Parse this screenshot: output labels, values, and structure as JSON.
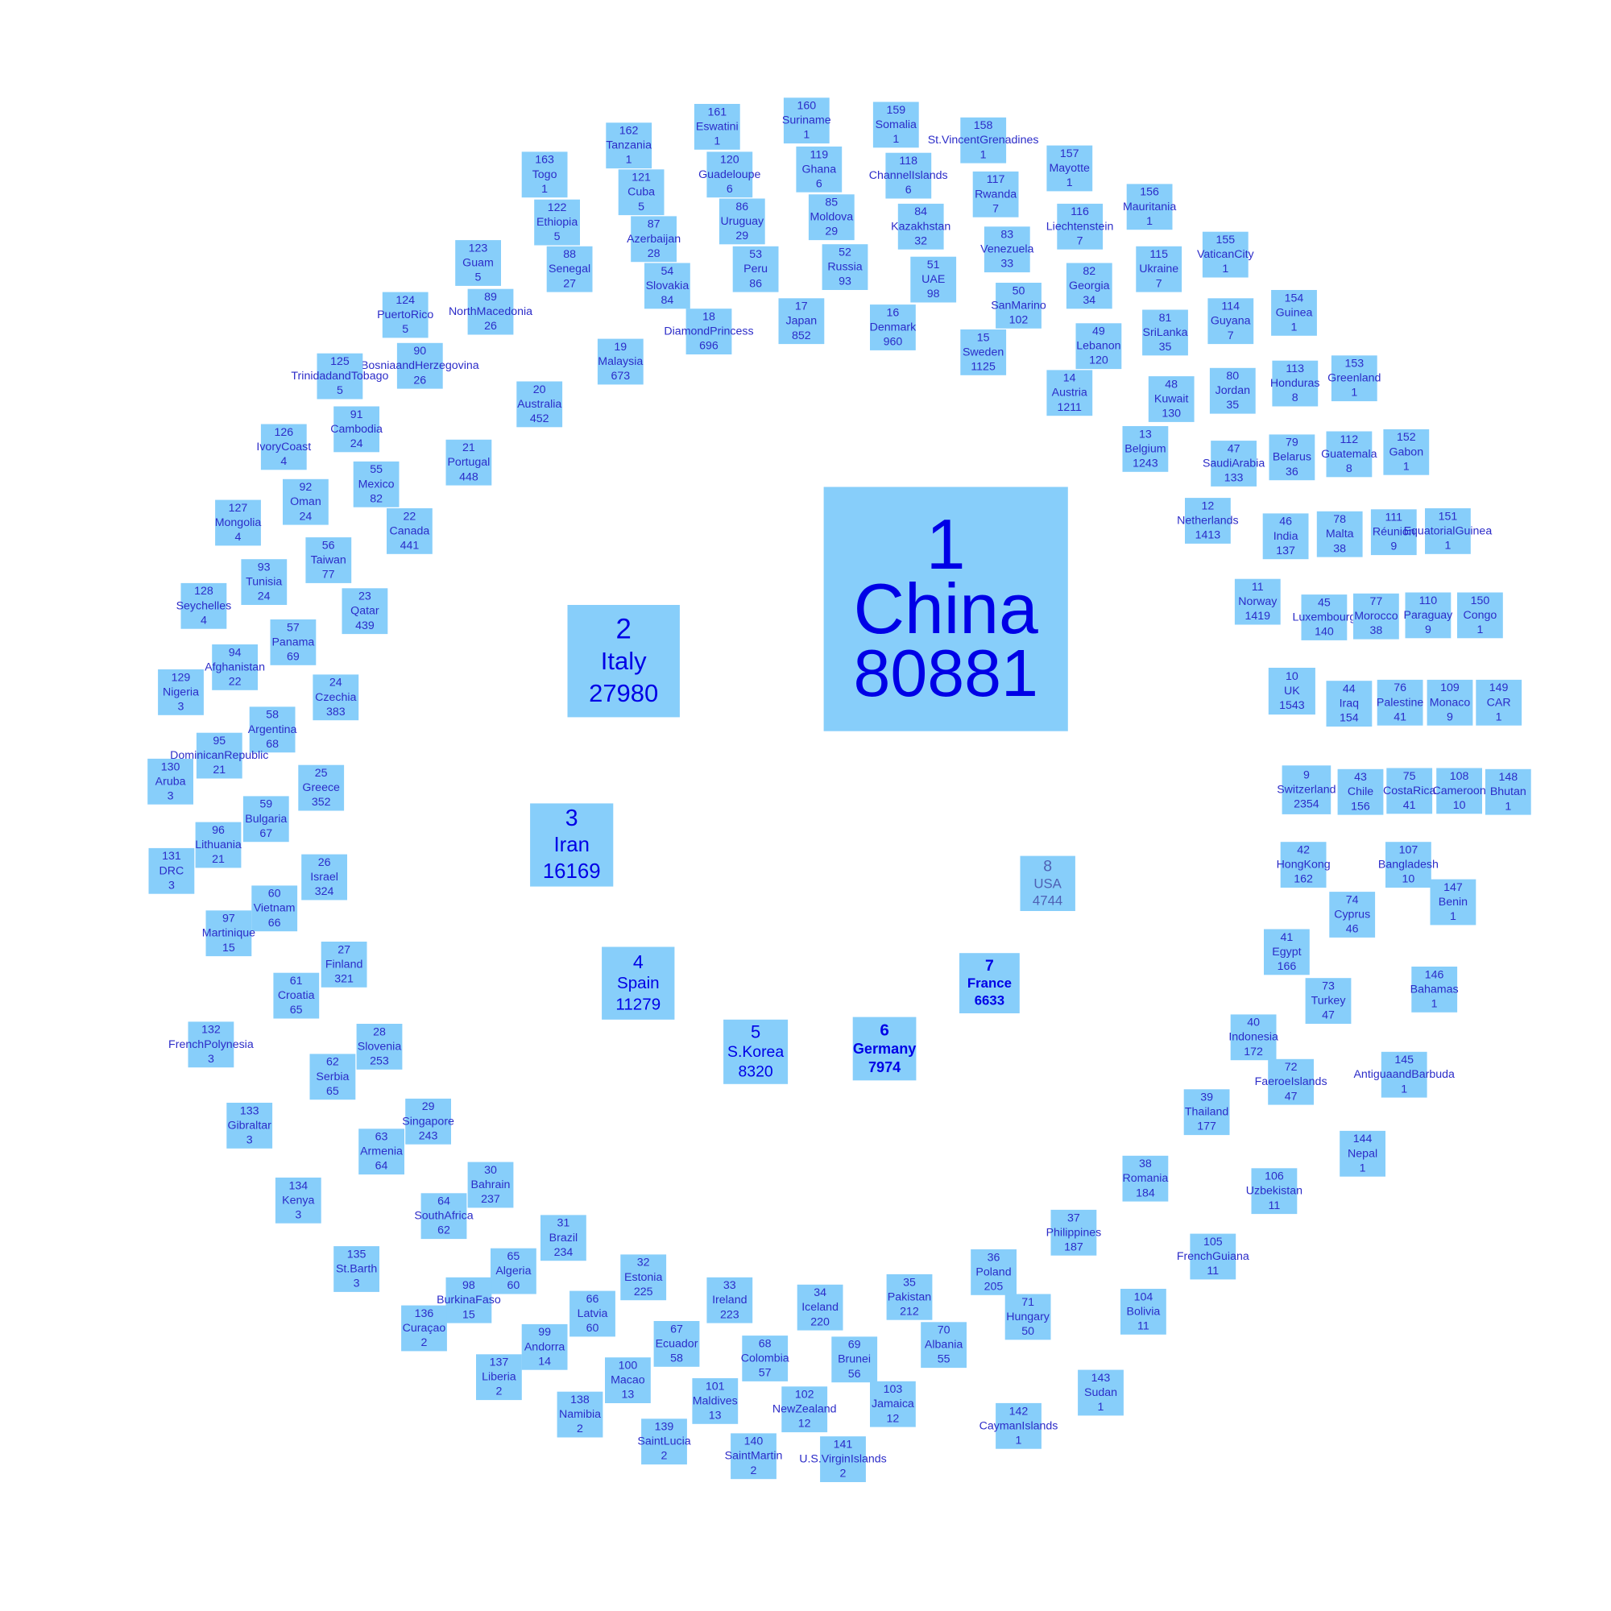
{
  "colors": {
    "box_fill": "#87cefa",
    "text_default": "#2c2cc8",
    "text_top": "#0000e6",
    "text_usa": "#4f61b5"
  },
  "chart_data": {
    "type": "table",
    "layout": "rings of squares, square size scales with value",
    "title": "",
    "columns": [
      "rank",
      "country",
      "value"
    ],
    "rows": [
      [
        1,
        "China",
        80881
      ],
      [
        2,
        "Italy",
        27980
      ],
      [
        3,
        "Iran",
        16169
      ],
      [
        4,
        "Spain",
        11279
      ],
      [
        5,
        "S.Korea",
        8320
      ],
      [
        6,
        "Germany",
        7974
      ],
      [
        7,
        "France",
        6633
      ],
      [
        8,
        "USA",
        4744
      ],
      [
        9,
        "Switzerland",
        2354
      ],
      [
        10,
        "UK",
        1543
      ],
      [
        11,
        "Norway",
        1419
      ],
      [
        12,
        "Netherlands",
        1413
      ],
      [
        13,
        "Belgium",
        1243
      ],
      [
        14,
        "Austria",
        1211
      ],
      [
        15,
        "Sweden",
        1125
      ],
      [
        16,
        "Denmark",
        960
      ],
      [
        17,
        "Japan",
        852
      ],
      [
        18,
        "DiamondPrincess",
        696
      ],
      [
        19,
        "Malaysia",
        673
      ],
      [
        20,
        "Australia",
        452
      ],
      [
        21,
        "Portugal",
        448
      ],
      [
        22,
        "Canada",
        441
      ],
      [
        23,
        "Qatar",
        439
      ],
      [
        24,
        "Czechia",
        383
      ],
      [
        25,
        "Greece",
        352
      ],
      [
        26,
        "Israel",
        324
      ],
      [
        27,
        "Finland",
        321
      ],
      [
        28,
        "Slovenia",
        253
      ],
      [
        29,
        "Singapore",
        243
      ],
      [
        30,
        "Bahrain",
        237
      ],
      [
        31,
        "Brazil",
        234
      ],
      [
        32,
        "Estonia",
        225
      ],
      [
        33,
        "Ireland",
        223
      ],
      [
        34,
        "Iceland",
        220
      ],
      [
        35,
        "Pakistan",
        212
      ],
      [
        36,
        "Poland",
        205
      ],
      [
        37,
        "Philippines",
        187
      ],
      [
        38,
        "Romania",
        184
      ],
      [
        39,
        "Thailand",
        177
      ],
      [
        40,
        "Indonesia",
        172
      ],
      [
        41,
        "Egypt",
        166
      ],
      [
        42,
        "HongKong",
        162
      ],
      [
        43,
        "Chile",
        156
      ],
      [
        44,
        "Iraq",
        154
      ],
      [
        45,
        "Luxembourg",
        140
      ],
      [
        46,
        "India",
        137
      ],
      [
        47,
        "SaudiArabia",
        133
      ],
      [
        48,
        "Kuwait",
        130
      ],
      [
        49,
        "Lebanon",
        120
      ],
      [
        50,
        "SanMarino",
        102
      ],
      [
        51,
        "UAE",
        98
      ],
      [
        52,
        "Russia",
        93
      ],
      [
        53,
        "Peru",
        86
      ],
      [
        54,
        "Slovakia",
        84
      ],
      [
        55,
        "Mexico",
        82
      ],
      [
        56,
        "Taiwan",
        77
      ],
      [
        57,
        "Panama",
        69
      ],
      [
        58,
        "Argentina",
        68
      ],
      [
        59,
        "Bulgaria",
        67
      ],
      [
        60,
        "Vietnam",
        66
      ],
      [
        61,
        "Croatia",
        65
      ],
      [
        62,
        "Serbia",
        65
      ],
      [
        63,
        "Armenia",
        64
      ],
      [
        64,
        "SouthAfrica",
        62
      ],
      [
        65,
        "Algeria",
        60
      ],
      [
        66,
        "Latvia",
        60
      ],
      [
        67,
        "Ecuador",
        58
      ],
      [
        68,
        "Colombia",
        57
      ],
      [
        69,
        "Brunei",
        56
      ],
      [
        70,
        "Albania",
        55
      ],
      [
        71,
        "Hungary",
        50
      ],
      [
        72,
        "FaeroeIslands",
        47
      ],
      [
        73,
        "Turkey",
        47
      ],
      [
        74,
        "Cyprus",
        46
      ],
      [
        75,
        "CostaRica",
        41
      ],
      [
        76,
        "Palestine",
        41
      ],
      [
        77,
        "Morocco",
        38
      ],
      [
        78,
        "Malta",
        38
      ],
      [
        79,
        "Belarus",
        36
      ],
      [
        80,
        "Jordan",
        35
      ],
      [
        81,
        "SriLanka",
        35
      ],
      [
        82,
        "Georgia",
        34
      ],
      [
        83,
        "Venezuela",
        33
      ],
      [
        84,
        "Kazakhstan",
        32
      ],
      [
        85,
        "Moldova",
        29
      ],
      [
        86,
        "Uruguay",
        29
      ],
      [
        87,
        "Azerbaijan",
        28
      ],
      [
        88,
        "Senegal",
        27
      ],
      [
        89,
        "NorthMacedonia",
        26
      ],
      [
        90,
        "BosniaandHerzegovina",
        26
      ],
      [
        91,
        "Cambodia",
        24
      ],
      [
        92,
        "Oman",
        24
      ],
      [
        93,
        "Tunisia",
        24
      ],
      [
        94,
        "Afghanistan",
        22
      ],
      [
        95,
        "DominicanRepublic",
        21
      ],
      [
        96,
        "Lithuania",
        21
      ],
      [
        97,
        "Martinique",
        15
      ],
      [
        98,
        "BurkinaFaso",
        15
      ],
      [
        99,
        "Andorra",
        14
      ],
      [
        100,
        "Macao",
        13
      ],
      [
        101,
        "Maldives",
        13
      ],
      [
        102,
        "NewZealand",
        12
      ],
      [
        103,
        "Jamaica",
        12
      ],
      [
        104,
        "Bolivia",
        11
      ],
      [
        105,
        "FrenchGuiana",
        11
      ],
      [
        106,
        "Uzbekistan",
        11
      ],
      [
        107,
        "Bangladesh",
        10
      ],
      [
        108,
        "Cameroon",
        10
      ],
      [
        109,
        "Monaco",
        9
      ],
      [
        110,
        "Paraguay",
        9
      ],
      [
        111,
        "Réunion",
        9
      ],
      [
        112,
        "Guatemala",
        8
      ],
      [
        113,
        "Honduras",
        8
      ],
      [
        114,
        "Guyana",
        7
      ],
      [
        115,
        "Ukraine",
        7
      ],
      [
        116,
        "Liechtenstein",
        7
      ],
      [
        117,
        "Rwanda",
        7
      ],
      [
        118,
        "ChannelIslands",
        6
      ],
      [
        119,
        "Ghana",
        6
      ],
      [
        120,
        "Guadeloupe",
        6
      ],
      [
        121,
        "Cuba",
        5
      ],
      [
        122,
        "Ethiopia",
        5
      ],
      [
        123,
        "Guam",
        5
      ],
      [
        124,
        "PuertoRico",
        5
      ],
      [
        125,
        "TrinidadandTobago",
        5
      ],
      [
        126,
        "IvoryCoast",
        4
      ],
      [
        127,
        "Mongolia",
        4
      ],
      [
        128,
        "Seychelles",
        4
      ],
      [
        129,
        "Nigeria",
        3
      ],
      [
        130,
        "Aruba",
        3
      ],
      [
        131,
        "DRC",
        3
      ],
      [
        132,
        "FrenchPolynesia",
        3
      ],
      [
        133,
        "Gibraltar",
        3
      ],
      [
        134,
        "Kenya",
        3
      ],
      [
        135,
        "St.Barth",
        3
      ],
      [
        136,
        "Curaçao",
        2
      ],
      [
        137,
        "Liberia",
        2
      ],
      [
        138,
        "Namibia",
        2
      ],
      [
        139,
        "SaintLucia",
        2
      ],
      [
        140,
        "SaintMartin",
        2
      ],
      [
        141,
        "U.S.VirginIslands",
        2
      ],
      [
        142,
        "CaymanIslands",
        1
      ],
      [
        143,
        "Sudan",
        1
      ],
      [
        144,
        "Nepal",
        1
      ],
      [
        145,
        "AntiguaandBarbuda",
        1
      ],
      [
        146,
        "Bahamas",
        1
      ],
      [
        147,
        "Benin",
        1
      ],
      [
        148,
        "Bhutan",
        1
      ],
      [
        149,
        "CAR",
        1
      ],
      [
        150,
        "Congo",
        1
      ],
      [
        151,
        "EquatorialGuinea",
        1
      ],
      [
        152,
        "Gabon",
        1
      ],
      [
        153,
        "Greenland",
        1
      ],
      [
        154,
        "Guinea",
        1
      ],
      [
        155,
        "VaticanCity",
        1
      ],
      [
        156,
        "Mauritania",
        1
      ],
      [
        157,
        "Mayotte",
        1
      ],
      [
        158,
        "St.VincentGrenadines",
        1
      ],
      [
        159,
        "Somalia",
        1
      ],
      [
        160,
        "Suriname",
        1
      ],
      [
        161,
        "Eswatini",
        1
      ],
      [
        162,
        "Tanzania",
        1
      ],
      [
        163,
        "Togo",
        1
      ]
    ]
  }
}
